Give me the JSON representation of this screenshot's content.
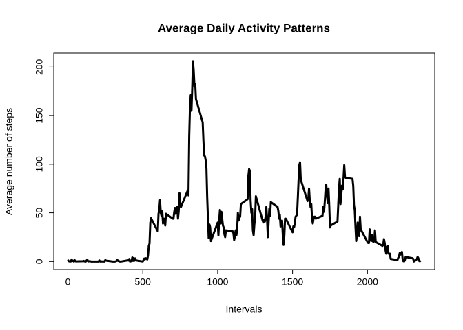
{
  "chart_data": {
    "type": "line",
    "title": "Average Daily Activity Patterns",
    "x_label": "Intervals",
    "y_label": "Average number of steps",
    "xlim": [
      -94.2,
      2449.2
    ],
    "ylim": [
      -8.25,
      214.4
    ],
    "xticks": [
      0,
      500,
      1000,
      1500,
      2000
    ],
    "yticks": [
      0,
      50,
      100,
      150,
      200
    ],
    "grid": false,
    "series": [
      {
        "color": "#000000",
        "x": [
          0,
          5,
          10,
          15,
          20,
          25,
          30,
          35,
          40,
          45,
          50,
          55,
          100,
          105,
          110,
          115,
          120,
          125,
          130,
          135,
          140,
          145,
          150,
          155,
          200,
          205,
          210,
          215,
          220,
          225,
          230,
          235,
          240,
          245,
          250,
          255,
          300,
          305,
          310,
          315,
          320,
          325,
          330,
          335,
          340,
          345,
          350,
          355,
          400,
          405,
          410,
          415,
          420,
          425,
          430,
          435,
          440,
          445,
          450,
          455,
          500,
          505,
          510,
          515,
          520,
          525,
          530,
          535,
          540,
          545,
          550,
          555,
          600,
          605,
          610,
          615,
          620,
          625,
          630,
          635,
          640,
          645,
          650,
          655,
          700,
          705,
          710,
          715,
          720,
          725,
          730,
          735,
          740,
          745,
          750,
          755,
          800,
          805,
          810,
          815,
          820,
          825,
          830,
          835,
          840,
          845,
          850,
          855,
          900,
          905,
          910,
          915,
          920,
          925,
          930,
          935,
          940,
          945,
          950,
          955,
          1000,
          1005,
          1010,
          1015,
          1020,
          1025,
          1030,
          1035,
          1040,
          1045,
          1050,
          1055,
          1100,
          1105,
          1110,
          1115,
          1120,
          1125,
          1130,
          1135,
          1140,
          1145,
          1150,
          1155,
          1200,
          1205,
          1210,
          1215,
          1220,
          1225,
          1230,
          1235,
          1240,
          1245,
          1250,
          1255,
          1300,
          1305,
          1310,
          1315,
          1320,
          1325,
          1330,
          1335,
          1340,
          1345,
          1350,
          1355,
          1400,
          1405,
          1410,
          1415,
          1420,
          1425,
          1430,
          1435,
          1440,
          1445,
          1450,
          1455,
          1500,
          1505,
          1510,
          1515,
          1520,
          1525,
          1530,
          1535,
          1540,
          1545,
          1550,
          1555,
          1600,
          1605,
          1610,
          1615,
          1620,
          1625,
          1630,
          1635,
          1640,
          1645,
          1650,
          1655,
          1700,
          1705,
          1710,
          1715,
          1720,
          1725,
          1730,
          1735,
          1740,
          1745,
          1750,
          1755,
          1800,
          1805,
          1810,
          1815,
          1820,
          1825,
          1830,
          1835,
          1840,
          1845,
          1850,
          1855,
          1900,
          1905,
          1910,
          1915,
          1920,
          1925,
          1930,
          1935,
          1940,
          1945,
          1950,
          1955,
          2000,
          2005,
          2010,
          2015,
          2020,
          2025,
          2030,
          2035,
          2040,
          2045,
          2050,
          2055,
          2100,
          2105,
          2110,
          2115,
          2120,
          2125,
          2130,
          2135,
          2140,
          2145,
          2150,
          2155,
          2200,
          2205,
          2210,
          2215,
          2220,
          2225,
          2230,
          2235,
          2240,
          2245,
          2250,
          2255,
          2300,
          2305,
          2310,
          2315,
          2320,
          2325,
          2330,
          2335,
          2340,
          2345,
          2350,
          2355
        ],
        "values": [
          1.72,
          0.34,
          0.13,
          0.15,
          0.08,
          2.09,
          0.53,
          0.87,
          0,
          1.47,
          0.3,
          0.13,
          0.32,
          0.68,
          0.15,
          0.34,
          0,
          1.11,
          1.83,
          0.17,
          0.17,
          0.38,
          0.26,
          0,
          0,
          0,
          1.13,
          0,
          0,
          0.13,
          0,
          0.23,
          0,
          0,
          1.55,
          0.94,
          0,
          0,
          0,
          0,
          0.21,
          0.62,
          1.62,
          0.58,
          0.49,
          0.08,
          0,
          0,
          1.19,
          0.94,
          2.57,
          0,
          0.34,
          0.36,
          4.11,
          0.66,
          3.49,
          0.83,
          3.11,
          1.11,
          0,
          1.57,
          3,
          2.25,
          3.32,
          2.96,
          2.09,
          6.06,
          16.02,
          18.34,
          39.45,
          44.49,
          31,
          49,
          53,
          63,
          50,
          47,
          52,
          39,
          44,
          44,
          37,
          49,
          44,
          44,
          51,
          55,
          49,
          51,
          56,
          44,
          52,
          70,
          58,
          56,
          73,
          68,
          129,
          158,
          171,
          155,
          177,
          206,
          196,
          180,
          183,
          167,
          143,
          124,
          109,
          108,
          104,
          96,
          66,
          45,
          24,
          38,
          35,
          21,
          40,
          27,
          42,
          53,
          39,
          51,
          44,
          37,
          35,
          28,
          25,
          32,
          31,
          29,
          22,
          26,
          32,
          27,
          33,
          50,
          42,
          45,
          46,
          59,
          64,
          88,
          95,
          93,
          63,
          50,
          54,
          32,
          27,
          38,
          45,
          67,
          42,
          40,
          43,
          41,
          46,
          56,
          43,
          25,
          40,
          54,
          47,
          61,
          56,
          52,
          44,
          48,
          36,
          37,
          42,
          27,
          17,
          26,
          44,
          44,
          30,
          36,
          35,
          39,
          46,
          47,
          48,
          65,
          83,
          99,
          102,
          84,
          62,
          64,
          75,
          63,
          56,
          59,
          44,
          39,
          44,
          46,
          46,
          44,
          47,
          56,
          51,
          61,
          73,
          79,
          69,
          60,
          75,
          57,
          35,
          37,
          41,
          58,
          75,
          85,
          59,
          68,
          78,
          74,
          85,
          99,
          87,
          86,
          85,
          78,
          58,
          53,
          36,
          21,
          27,
          40,
          30,
          26,
          46,
          33,
          20,
          19,
          19,
          33,
          27,
          21,
          27,
          21,
          20,
          21,
          32,
          20,
          16,
          17,
          23,
          19,
          12,
          8,
          15,
          16,
          8,
          8,
          8,
          2.6,
          1.5,
          3.7,
          4.8,
          8.5,
          7.1,
          8.7,
          9.8,
          2.2,
          0.3,
          0.1,
          1.6,
          4.6,
          3.3,
          2.8,
          0,
          0.8,
          1,
          1.6,
          2.6,
          4.7,
          3.3,
          0.6,
          0.2,
          1.1
        ]
      }
    ]
  }
}
